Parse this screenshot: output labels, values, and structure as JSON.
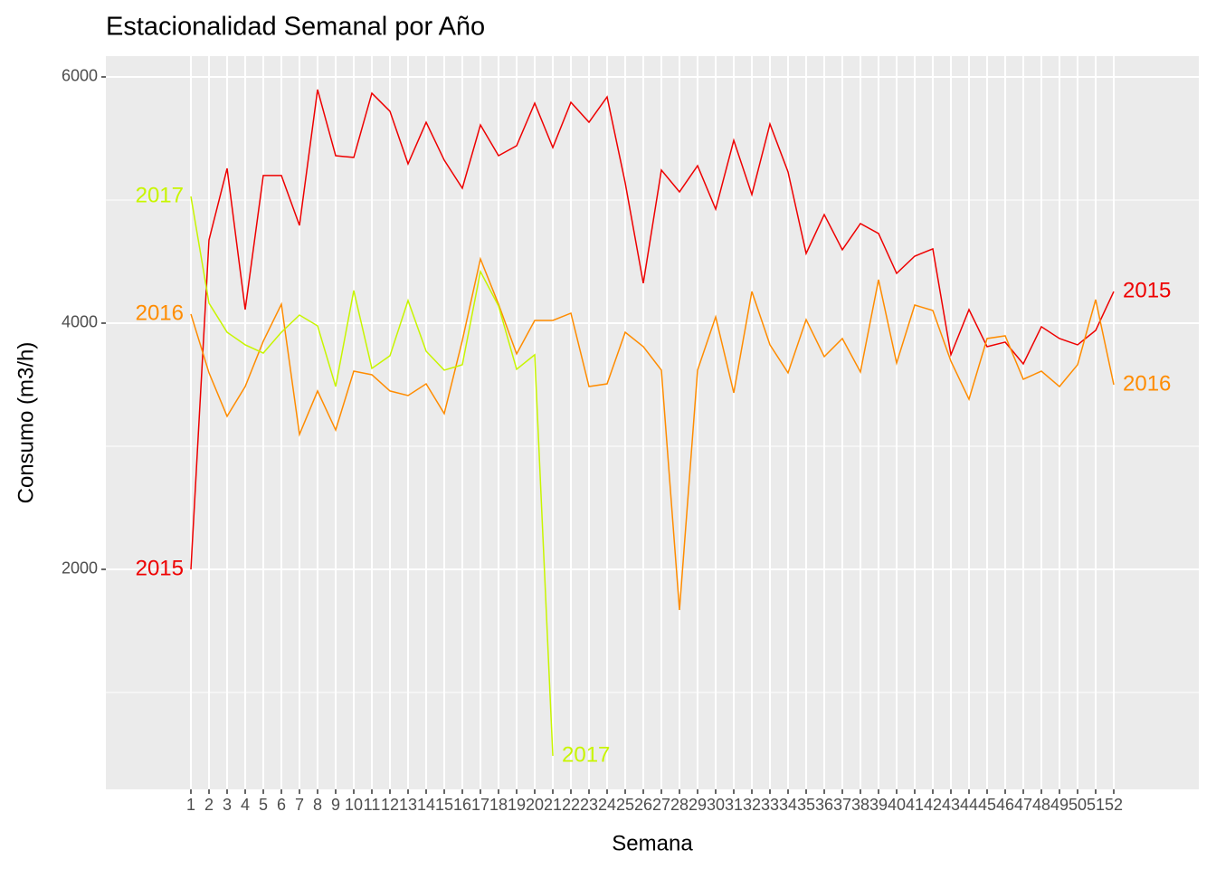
{
  "chart_data": {
    "type": "line",
    "title": "Estacionalidad Semanal por Año",
    "x_label": "Semana",
    "y_label": "Consumo (m3/h)",
    "x": [
      1,
      2,
      3,
      4,
      5,
      6,
      7,
      8,
      9,
      10,
      11,
      12,
      13,
      14,
      15,
      16,
      17,
      18,
      19,
      20,
      21,
      22,
      23,
      24,
      25,
      26,
      27,
      28,
      29,
      30,
      31,
      32,
      33,
      34,
      35,
      36,
      37,
      38,
      39,
      40,
      41,
      42,
      43,
      44,
      45,
      46,
      47,
      48,
      49,
      50,
      51,
      52
    ],
    "xticks": [
      1,
      2,
      3,
      4,
      5,
      6,
      7,
      8,
      9,
      10,
      11,
      12,
      13,
      14,
      15,
      16,
      17,
      18,
      19,
      20,
      21,
      22,
      23,
      24,
      25,
      26,
      27,
      28,
      29,
      30,
      31,
      32,
      33,
      34,
      35,
      36,
      37,
      38,
      39,
      40,
      41,
      42,
      43,
      44,
      45,
      46,
      47,
      48,
      49,
      50,
      51,
      52
    ],
    "xlim": [
      -3.7,
      56.7
    ],
    "ylim": [
      213,
      6169
    ],
    "yticks": [
      2000,
      4000,
      6000
    ],
    "minor_yticks": [
      1000,
      3000,
      5000
    ],
    "grid": true,
    "series": [
      {
        "name": "2015",
        "color": "#ee0000",
        "values": [
          2000,
          4676,
          5257,
          4110,
          5199,
          5199,
          4794,
          5897,
          5360,
          5346,
          5868,
          5721,
          5294,
          5632,
          5324,
          5096,
          5610,
          5360,
          5441,
          5787,
          5426,
          5794,
          5632,
          5838,
          5140,
          4324,
          5243,
          5066,
          5279,
          4926,
          5485,
          5044,
          5618,
          5228,
          4566,
          4882,
          4596,
          4809,
          4728,
          4404,
          4544,
          4603,
          3743,
          4110,
          3809,
          3846,
          3669,
          3971,
          3875,
          3824,
          3941,
          4257
        ]
      },
      {
        "name": "2016",
        "color": "#ff8c00",
        "values": [
          4074,
          3596,
          3243,
          3485,
          3853,
          4154,
          3096,
          3449,
          3132,
          3610,
          3581,
          3449,
          3412,
          3507,
          3265,
          3860,
          4522,
          4154,
          3750,
          4022,
          4022,
          4081,
          3485,
          3507,
          3926,
          3809,
          3618,
          1669,
          3618,
          4051,
          3434,
          4257,
          3824,
          3596,
          4029,
          3728,
          3875,
          3603,
          4353,
          3676,
          4147,
          4103,
          3691,
          3382,
          3875,
          3897,
          3544,
          3610,
          3485,
          3662,
          4191,
          3500
        ]
      },
      {
        "name": "2017",
        "color": "#c8f500",
        "values": [
          5029,
          4162,
          3926,
          3824,
          3757,
          3926,
          4066,
          3978,
          3485,
          4265,
          3632,
          3735,
          4184,
          3772,
          3618,
          3662,
          4419,
          4140,
          3625,
          3743,
          485,
          null,
          null,
          null,
          null,
          null,
          null,
          null,
          null,
          null,
          null,
          null,
          null,
          null,
          null,
          null,
          null,
          null,
          null,
          null,
          null,
          null,
          null,
          null,
          null,
          null,
          null,
          null,
          null,
          null,
          null,
          null
        ]
      }
    ]
  }
}
